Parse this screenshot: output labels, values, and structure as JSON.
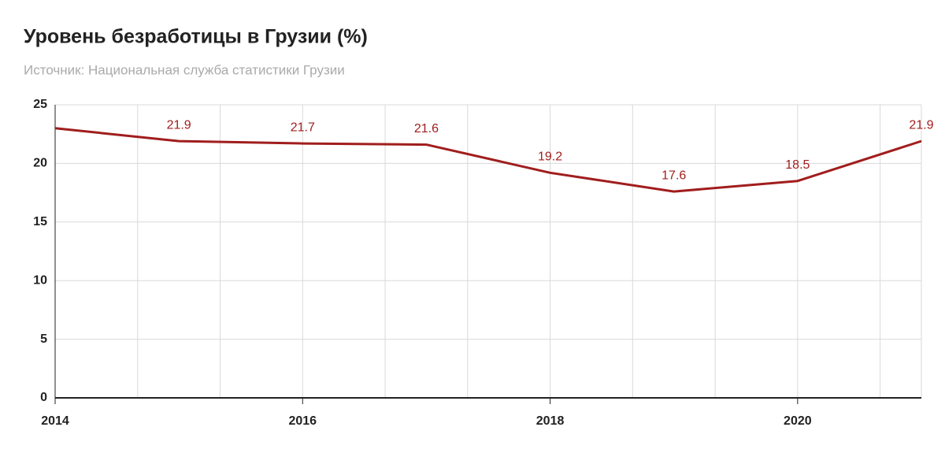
{
  "chart_data": {
    "type": "line",
    "title": "Уровень безработицы в Грузии (%)",
    "subtitle": "Источник: Национальная служба статистики Грузии",
    "x": [
      2014,
      2015,
      2016,
      2017,
      2018,
      2019,
      2020,
      2021
    ],
    "series": [
      {
        "color": "#a11d1d",
        "values": [
          23.0,
          21.9,
          21.7,
          21.6,
          19.2,
          17.6,
          18.5,
          21.9
        ],
        "value_labels": [
          null,
          "21.9",
          "21.7",
          "21.6",
          "19.2",
          "17.6",
          "18.5",
          "21.9"
        ]
      }
    ],
    "xlim": [
      2014,
      2021
    ],
    "xticks": [
      2014,
      2016,
      2018,
      2020
    ],
    "ylim": [
      0,
      25
    ],
    "yticks": [
      0,
      5,
      10,
      15,
      20,
      25
    ],
    "grid": true
  }
}
